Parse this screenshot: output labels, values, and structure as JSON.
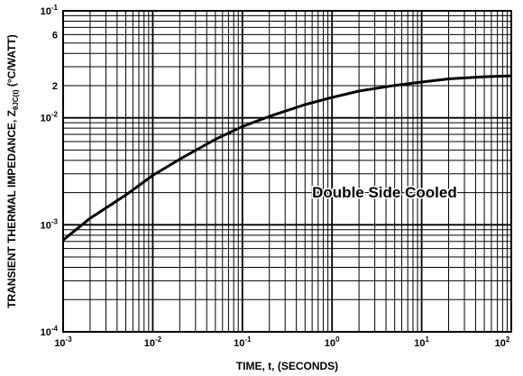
{
  "chart_data": {
    "type": "line",
    "xscale": "log",
    "yscale": "log",
    "xlim": [
      0.001,
      100
    ],
    "ylim": [
      0.0001,
      0.1
    ],
    "grid": true,
    "xlabel": "TIME, t, (SECONDS)",
    "ylabel": {
      "prefix": "TRANSIENT THERMAL IMPEDANCE, Z",
      "subscript": "θJC(t)",
      "suffix": " (°C/WATT)"
    },
    "annotation": "Double Side Cooled",
    "x_ticks": [
      {
        "value": 0.001,
        "base": "10",
        "exp": "-3"
      },
      {
        "value": 0.01,
        "base": "10",
        "exp": "-2"
      },
      {
        "value": 0.1,
        "base": "10",
        "exp": "-1"
      },
      {
        "value": 1,
        "base": "10",
        "exp": "0"
      },
      {
        "value": 10,
        "base": "10",
        "exp": "1"
      },
      {
        "value": 100,
        "base": "10",
        "exp": "2"
      }
    ],
    "y_ticks": [
      {
        "value": 0.1,
        "base": "10",
        "exp": "-1"
      },
      {
        "value": 0.06,
        "base": "6",
        "exp": ""
      },
      {
        "value": 0.02,
        "base": "2",
        "exp": ""
      },
      {
        "value": 0.01,
        "base": "10",
        "exp": "-2"
      },
      {
        "value": 0.001,
        "base": "10",
        "exp": "-3"
      },
      {
        "value": 0.0001,
        "base": "10",
        "exp": "-4"
      }
    ],
    "series": [
      {
        "x": [
          0.001,
          0.002,
          0.005,
          0.01,
          0.02,
          0.05,
          0.1,
          0.2,
          0.5,
          1,
          2,
          5,
          10,
          20,
          50,
          100
        ],
        "y": [
          0.00072,
          0.00115,
          0.0019,
          0.0029,
          0.0041,
          0.0063,
          0.0083,
          0.0103,
          0.0133,
          0.0155,
          0.0178,
          0.0201,
          0.0216,
          0.0231,
          0.0242,
          0.0247
        ]
      }
    ]
  }
}
